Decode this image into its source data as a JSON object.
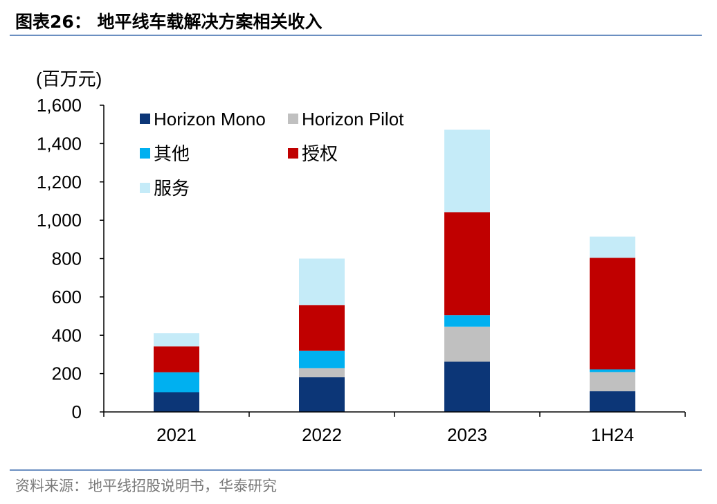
{
  "header": {
    "title": "图表26：  地平线车载解决方案相关收入"
  },
  "footer": {
    "source": "资料来源：地平线招股说明书，华泰研究"
  },
  "chart_data": {
    "type": "bar",
    "stacked": true,
    "title": "图表26：  地平线车载解决方案相关收入",
    "unit_label": "(百万元)",
    "categories": [
      "2021",
      "2022",
      "2023",
      "1H24"
    ],
    "ylim": [
      0,
      1600
    ],
    "yticks": [
      0,
      200,
      400,
      600,
      800,
      1000,
      1200,
      1400,
      1600
    ],
    "ytick_labels": [
      "0",
      "200",
      "400",
      "600",
      "800",
      "1,000",
      "1,200",
      "1,400",
      "1,600"
    ],
    "legend_position": "top-left",
    "series": [
      {
        "name": "Horizon Mono",
        "color": "#0c3677",
        "values": [
          103,
          181,
          262,
          108
        ]
      },
      {
        "name": "Horizon Pilot",
        "color": "#c0c0c0",
        "values": [
          0,
          47,
          183,
          100
        ]
      },
      {
        "name": "其他",
        "color": "#00b0f0",
        "values": [
          104,
          91,
          60,
          14
        ]
      },
      {
        "name": "授权",
        "color": "#c00000",
        "values": [
          135,
          238,
          537,
          582
        ]
      },
      {
        "name": "服务",
        "color": "#c5ebf8",
        "values": [
          69,
          243,
          430,
          111
        ]
      }
    ]
  }
}
